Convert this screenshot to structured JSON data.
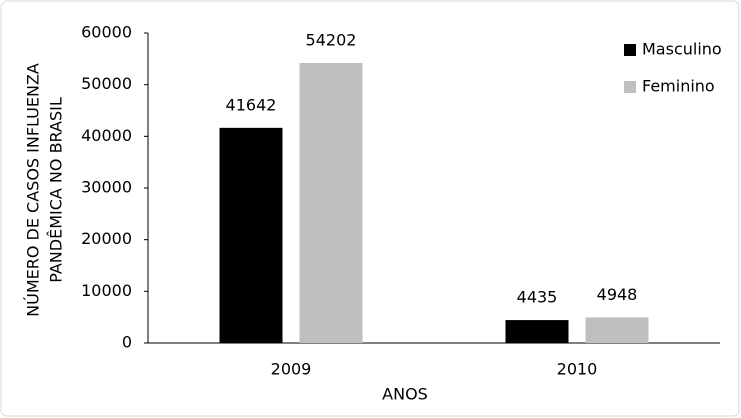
{
  "chart_data": {
    "type": "bar",
    "x_label": "ANOS",
    "y_label": [
      "NÚMERO DE CASOS INFLUENZA",
      "PANDÊMICA NO BRASIL"
    ],
    "categories": [
      "2009",
      "2010"
    ],
    "series": [
      {
        "name": "Masculino",
        "color": "#000000",
        "values": [
          41642,
          4435
        ]
      },
      {
        "name": "Feminino",
        "color": "#bfbfbf",
        "values": [
          54202,
          4948
        ]
      }
    ],
    "ylim": [
      0,
      60000
    ],
    "yticks": [
      0,
      10000,
      20000,
      30000,
      40000,
      50000,
      60000
    ],
    "grid": false,
    "legend": "top-right"
  }
}
